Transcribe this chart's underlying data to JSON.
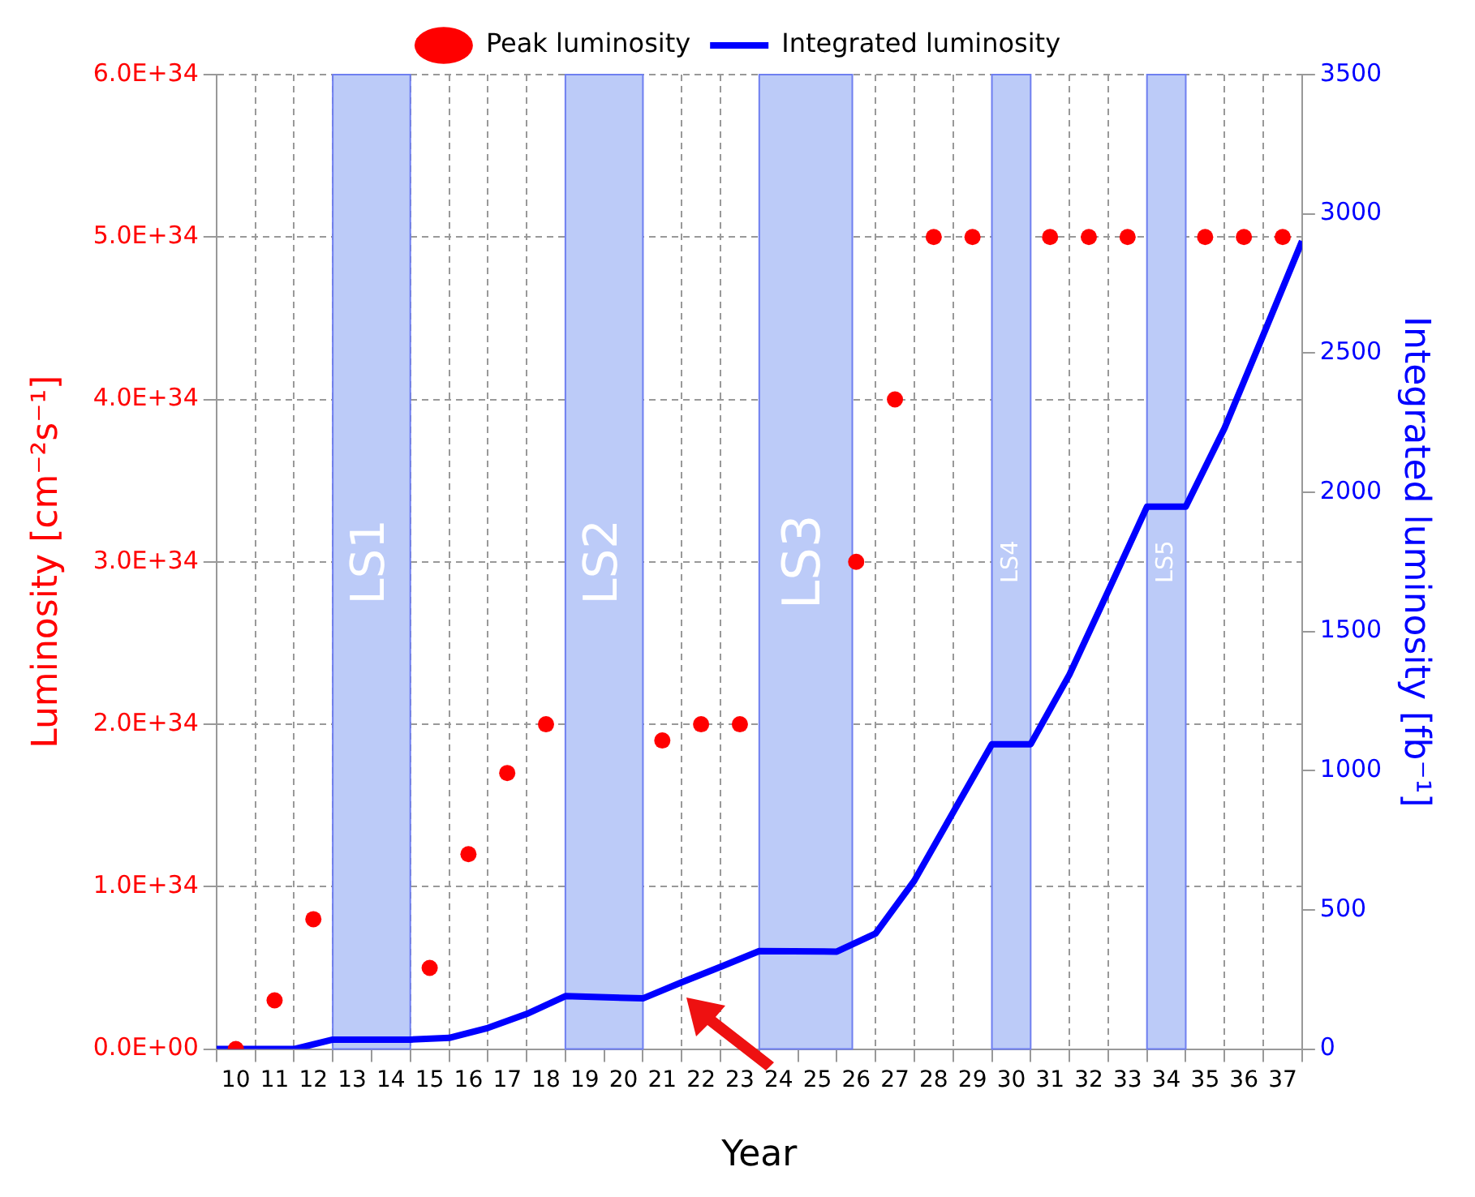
{
  "chart_data": {
    "type": "scatter",
    "xlabel": "Year",
    "ylabel": "Luminosity [cm⁻²s⁻¹]",
    "y2label": "Integrated luminosity [fb⁻¹]",
    "x": [
      10,
      11,
      12,
      13,
      14,
      15,
      16,
      17,
      18,
      19,
      20,
      21,
      22,
      23,
      24,
      25,
      26,
      27,
      28,
      29,
      30,
      31,
      32,
      33,
      34,
      35,
      36,
      37
    ],
    "series": [
      {
        "name": "Peak luminosity",
        "marker": "circle",
        "color": "#ff0000",
        "values": [
          0,
          3e+33,
          8e+33,
          null,
          null,
          5e+33,
          1.2e+34,
          1.7e+34,
          2e+34,
          null,
          null,
          1.9e+34,
          2e+34,
          2e+34,
          null,
          null,
          3e+34,
          4e+34,
          5e+34,
          5e+34,
          null,
          5e+34,
          5e+34,
          5e+34,
          null,
          5e+34,
          5e+34,
          5e+34
        ]
      },
      {
        "name": "Integrated luminosity",
        "type": "line",
        "marker": "none",
        "axis": "y2",
        "color": "#0000ff",
        "x": [
          9.5,
          10.5,
          11.5,
          12.5,
          14.5,
          15.5,
          16.5,
          17.5,
          18.5,
          20.5,
          21.5,
          22.5,
          23.5,
          25.5,
          26.5,
          27.5,
          28.5,
          29.5,
          30.5,
          31.5,
          32.5,
          33.5,
          34.5,
          35.5,
          36.5,
          37.5
        ],
        "values": [
          0,
          0,
          0,
          34,
          34,
          40,
          76,
          126,
          190,
          182,
          240,
          295,
          352,
          350,
          415,
          605,
          850,
          1095,
          1095,
          1345,
          1645,
          1948,
          1948,
          2230,
          2565,
          2902
        ]
      }
    ],
    "xlim": [
      9.5,
      37.5
    ],
    "xticks": [
      10,
      11,
      12,
      13,
      14,
      15,
      16,
      17,
      18,
      19,
      20,
      21,
      22,
      23,
      24,
      25,
      26,
      27,
      28,
      29,
      30,
      31,
      32,
      33,
      34,
      35,
      36,
      37
    ],
    "ylim": [
      0,
      6e+34
    ],
    "yticks": [
      {
        "value": 0,
        "label": "0.0E+00"
      },
      {
        "value": 1e+34,
        "label": "1.0E+34"
      },
      {
        "value": 2e+34,
        "label": "2.0E+34"
      },
      {
        "value": 3e+34,
        "label": "3.0E+34"
      },
      {
        "value": 4e+34,
        "label": "4.0E+34"
      },
      {
        "value": 5e+34,
        "label": "5.0E+34"
      },
      {
        "value": 6e+34,
        "label": "6.0E+34"
      }
    ],
    "y2lim": [
      0,
      3500
    ],
    "y2ticks": [
      0,
      500,
      1000,
      1500,
      2000,
      2500,
      3000,
      3500
    ],
    "bands": [
      {
        "axis": "x",
        "from": 12.5,
        "to": 14.5,
        "label": "LS1",
        "color": "#bccbf8"
      },
      {
        "axis": "x",
        "from": 18.5,
        "to": 20.5,
        "label": "LS2",
        "color": "#bccbf8"
      },
      {
        "axis": "x",
        "from": 23.5,
        "to": 25.9,
        "label": "LS3",
        "color": "#bccbf8"
      },
      {
        "axis": "x",
        "from": 29.5,
        "to": 30.5,
        "label": "LS4",
        "color": "#bccbf8"
      },
      {
        "axis": "x",
        "from": 33.5,
        "to": 34.5,
        "label": "LS5",
        "color": "#bccbf8"
      }
    ],
    "grid": true,
    "legend": "top",
    "line_style": "solid"
  }
}
